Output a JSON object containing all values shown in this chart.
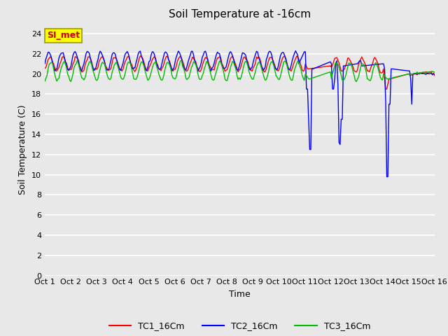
{
  "title": "Soil Temperature at -16cm",
  "xlabel": "Time",
  "ylabel": "Soil Temperature (C)",
  "ylim": [
    0,
    25
  ],
  "yticks": [
    0,
    2,
    4,
    6,
    8,
    10,
    12,
    14,
    16,
    18,
    20,
    22,
    24
  ],
  "xtick_labels": [
    "Oct 1",
    "Oct 2",
    "Oct 3",
    "Oct 4",
    "Oct 5",
    "Oct 6",
    "Oct 7",
    "Oct 8",
    "Oct 9",
    "Oct 10",
    "Oct 11",
    "Oct 12",
    "Oct 13",
    "Oct 14",
    "Oct 15",
    "Oct 16"
  ],
  "legend_labels": [
    "TC1_16Cm",
    "TC2_16Cm",
    "TC3_16Cm"
  ],
  "colors": {
    "TC1": "#ff0000",
    "TC2": "#0000ff",
    "TC3": "#00bb00"
  },
  "background_color": "#e8e8e8",
  "plot_bg": "#e8e8e8",
  "grid_color": "#ffffff",
  "annotation_text": "SI_met",
  "annotation_bg": "#ffff00",
  "annotation_border": "#999900",
  "annotation_text_color": "#cc0000",
  "n_days": 15,
  "pts_per_day": 24
}
